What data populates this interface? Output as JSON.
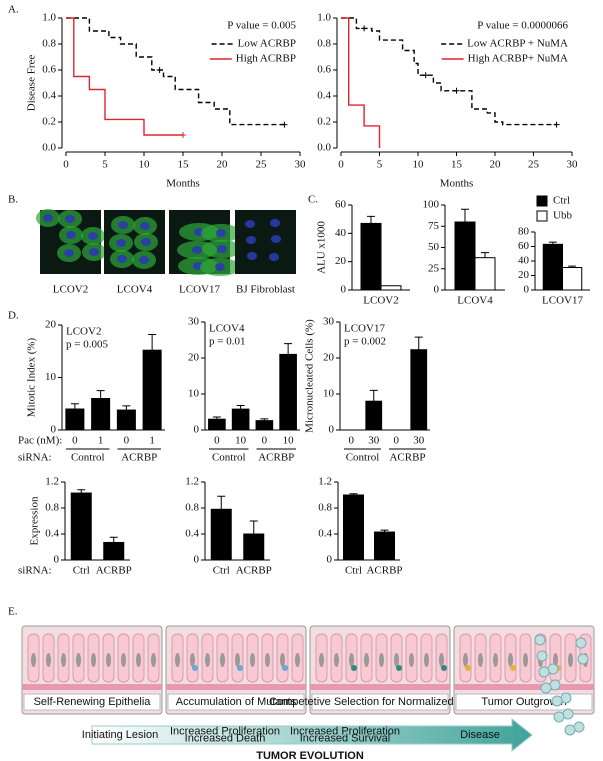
{
  "panel_labels": [
    "A.",
    "B.",
    "C.",
    "D.",
    "E."
  ],
  "chart_data": [
    {
      "type": "step",
      "xlabel": "Months",
      "ylabel": "Disease Free",
      "annotation": "P value = 0.005",
      "xlim": [
        0,
        30
      ],
      "xticks": [
        0,
        5,
        10,
        15,
        20,
        25,
        30
      ],
      "ylim": [
        0,
        1
      ],
      "yticks": [
        {
          "value": 0,
          "label": "0.0"
        },
        0.2,
        0.4,
        0.6,
        0.8,
        {
          "value": 1,
          "label": "1.0"
        }
      ],
      "series": [
        {
          "name": "Low ACRBP",
          "color": "#000000",
          "linestyle": "dashed",
          "x": [
            0,
            3,
            5.5,
            7,
            9,
            11,
            12.5,
            14,
            17,
            19,
            21,
            28
          ],
          "values": [
            1,
            0.9,
            0.85,
            0.8,
            0.7,
            0.6,
            0.55,
            0.45,
            0.35,
            0.3,
            0.18,
            0.18
          ],
          "censored_x": [
            12,
            28
          ],
          "censored_values": [
            0.6,
            0.18
          ]
        },
        {
          "name": "High ACRBP",
          "color": "#e0242b",
          "linestyle": "solid",
          "x": [
            0,
            1,
            3,
            5,
            10,
            15
          ],
          "values": [
            1,
            0.55,
            0.45,
            0.22,
            0.1,
            0.1
          ],
          "censored_x": [
            15
          ],
          "censored_values": [
            0.1
          ]
        }
      ]
    },
    {
      "type": "step",
      "xlabel": "Months",
      "annotation": "P value = 0.0000066",
      "xlim": [
        0,
        30
      ],
      "xticks": [
        0,
        5,
        10,
        15,
        20,
        25,
        30
      ],
      "ylim": [
        0,
        1
      ],
      "yticks": [
        {
          "value": 0,
          "label": "0.0"
        },
        0.2,
        0.4,
        0.6,
        0.8,
        {
          "value": 1,
          "label": "1.0"
        }
      ],
      "series": [
        {
          "name": "Low ACRBP + NuMA",
          "color": "#000000",
          "linestyle": "dashed",
          "x": [
            0,
            2,
            4,
            5,
            8,
            9.5,
            10,
            12,
            13,
            17,
            19,
            20,
            21,
            28
          ],
          "values": [
            1,
            0.92,
            0.9,
            0.83,
            0.75,
            0.65,
            0.56,
            0.5,
            0.44,
            0.3,
            0.27,
            0.2,
            0.18,
            0.18
          ],
          "censored_x": [
            3,
            11,
            15,
            28
          ],
          "censored_values": [
            0.92,
            0.56,
            0.44,
            0.18
          ]
        },
        {
          "name": "High ACRBP+ NuMA",
          "color": "#e0242b",
          "linestyle": "solid",
          "x": [
            0,
            1,
            3,
            5
          ],
          "values": [
            1,
            0.33,
            0.17,
            0
          ]
        }
      ]
    },
    {
      "type": "bar",
      "ylabel": "ALU  x1000",
      "categories": [
        "LCOV2"
      ],
      "ylim": [
        0,
        60
      ],
      "yticks": [
        0,
        20,
        40,
        60
      ],
      "series": [
        {
          "color": "#000000",
          "values": [
            47
          ],
          "errors": [
            5
          ]
        },
        {
          "color": "#ffffff",
          "values": [
            3
          ],
          "errors": [
            null
          ]
        }
      ]
    },
    {
      "type": "bar",
      "categories": [
        "LCOV4"
      ],
      "ylim": [
        0,
        100
      ],
      "yticks": [
        0,
        25,
        50,
        75,
        100
      ],
      "series": [
        {
          "color": "#000000",
          "values": [
            80
          ],
          "errors": [
            15
          ]
        },
        {
          "color": "#ffffff",
          "values": [
            38
          ],
          "errors": [
            6
          ]
        }
      ]
    },
    {
      "type": "bar",
      "categories": [
        "LCOV17"
      ],
      "ylim": [
        0,
        80
      ],
      "yticks": [
        0,
        20,
        40,
        60,
        80
      ],
      "series": [
        {
          "name": "Ctrl",
          "color": "#000000",
          "values": [
            63
          ],
          "errors": [
            3
          ]
        },
        {
          "name": "Ubb",
          "color": "#ffffff",
          "values": [
            31
          ],
          "errors": [
            2
          ]
        }
      ]
    },
    {
      "type": "bar",
      "ylabel": "Mitotic Index (%)",
      "annotations": [
        "LCOV2",
        "p = 0.005"
      ],
      "categories": [
        "0",
        "1",
        "0",
        "1"
      ],
      "groups": [
        "Control",
        "ACRBP"
      ],
      "row_labels": [
        "Pac (nM):",
        "siRNA:"
      ],
      "ylim": [
        0,
        20
      ],
      "yticks": [
        0,
        10,
        20
      ],
      "series": [
        {
          "color": "#000000",
          "values": [
            4,
            6,
            3.8,
            15.2
          ],
          "errors": [
            1,
            1.5,
            0.8,
            3
          ]
        }
      ]
    },
    {
      "type": "bar",
      "annotations": [
        "LCOV4",
        "p = 0.01"
      ],
      "categories": [
        "0",
        "10",
        "0",
        "10"
      ],
      "groups": [
        "Control",
        "ACRBP"
      ],
      "ylim": [
        0,
        30
      ],
      "yticks": [
        0,
        10,
        20,
        30
      ],
      "series": [
        {
          "color": "#000000",
          "values": [
            3,
            5.8,
            2.6,
            21
          ],
          "errors": [
            0.6,
            1,
            0.5,
            3
          ]
        }
      ]
    },
    {
      "type": "bar",
      "ylabel": "Micronucleated Cells (%)",
      "annotations": [
        "LCOV17",
        "p = 0.002"
      ],
      "categories": [
        "0",
        "30",
        "0",
        "30"
      ],
      "groups": [
        "Control",
        "ACRBP"
      ],
      "ylim": [
        0,
        30
      ],
      "yticks": [
        0,
        10,
        20,
        30
      ],
      "series": [
        {
          "color": "#000000",
          "values": [
            0,
            8,
            0,
            22.3
          ],
          "errors": [
            null,
            3,
            null,
            3.5
          ]
        }
      ]
    },
    {
      "type": "bar",
      "ylabel": "Expression",
      "categories": [
        "Ctrl",
        "ACRBP"
      ],
      "row_labels": [
        "siRNA:"
      ],
      "ylim": [
        0,
        1.2
      ],
      "yticks": [
        0,
        0.4,
        0.8,
        1.2
      ],
      "series": [
        {
          "color": "#000000",
          "values": [
            1.03,
            0.27
          ],
          "errors": [
            0.05,
            0.08
          ]
        }
      ]
    },
    {
      "type": "bar",
      "categories": [
        "Ctrl",
        "ACRBP"
      ],
      "ylim": [
        0,
        1.2
      ],
      "yticks": [
        0,
        0.4,
        0.8,
        1.2
      ],
      "series": [
        {
          "color": "#000000",
          "values": [
            0.78,
            0.4
          ],
          "errors": [
            0.2,
            0.2
          ]
        }
      ]
    },
    {
      "type": "bar",
      "categories": [
        "Ctrl",
        "ACRBP"
      ],
      "ylim": [
        0,
        1.2
      ],
      "yticks": [
        0,
        0.4,
        0.8,
        1.2
      ],
      "series": [
        {
          "color": "#000000",
          "values": [
            1.0,
            0.43
          ],
          "errors": [
            0.02,
            0.03
          ]
        }
      ]
    }
  ],
  "images": [
    "LCOV2",
    "LCOV4",
    "LCOV17",
    "BJ Fibroblast"
  ],
  "diagram": {
    "stages": [
      "Self-Renewing Epithelia",
      "Accumulation of Mutants",
      "Competetive Selection for Normalized Mitosis",
      "Tumor Outgrowth"
    ],
    "arrow_labels": [
      [
        "Initiating Lesion"
      ],
      [
        "Increased Proliferation",
        "Increased Death"
      ],
      [
        "Increased Proliferation",
        "Increased Survival"
      ],
      [
        "Disease"
      ]
    ],
    "title": "TUMOR EVOLUTION"
  }
}
